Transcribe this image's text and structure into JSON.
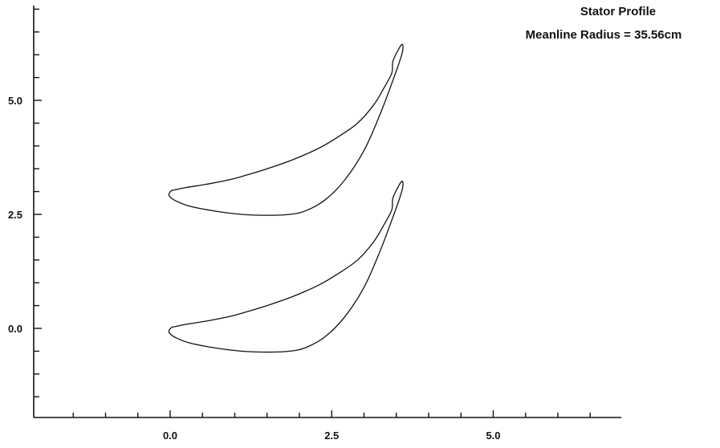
{
  "chart_data": {
    "type": "line",
    "title": "Stator Profile",
    "subtitle": "Meanline Radius = 35.56cm",
    "xlabel": "",
    "ylabel": "",
    "xlim": [
      -2.0,
      7.0
    ],
    "ylim": [
      -2.0,
      7.0
    ],
    "x_ticks": [
      0.0,
      2.5,
      5.0
    ],
    "x_tick_labels": [
      "0.0",
      "2.5",
      "5.0"
    ],
    "y_ticks": [
      0.0,
      2.5,
      5.0
    ],
    "y_tick_labels": [
      "0.0",
      "2.5",
      "5.0"
    ],
    "x_minor_step": 0.5,
    "y_minor_step": 0.5,
    "grid": false,
    "line_color": "#111111",
    "series": [
      {
        "x": [
          3.45,
          3.43,
          3.3,
          3.15,
          2.9,
          2.6,
          2.3,
          1.9,
          1.5,
          1.2,
          0.95,
          0.6,
          0.25,
          0.08,
          0.02,
          -0.02,
          0.0,
          0.08,
          0.3,
          0.7,
          1.1,
          1.5,
          1.85,
          2.1,
          2.4,
          2.7,
          3.0,
          3.25,
          3.45,
          3.55,
          3.6,
          3.58
        ],
        "y": [
          2.87,
          2.6,
          2.25,
          1.9,
          1.5,
          1.2,
          0.95,
          0.7,
          0.5,
          0.37,
          0.27,
          0.17,
          0.09,
          0.04,
          0.02,
          -0.06,
          -0.12,
          -0.2,
          -0.32,
          -0.43,
          -0.5,
          -0.52,
          -0.5,
          -0.42,
          -0.18,
          0.25,
          0.9,
          1.7,
          2.45,
          2.85,
          3.1,
          3.22
        ]
      },
      {
        "x": [
          3.45,
          3.43,
          3.3,
          3.15,
          2.9,
          2.6,
          2.3,
          1.9,
          1.5,
          1.2,
          0.95,
          0.6,
          0.25,
          0.08,
          0.02,
          -0.02,
          0.0,
          0.08,
          0.3,
          0.7,
          1.1,
          1.5,
          1.85,
          2.1,
          2.4,
          2.7,
          3.0,
          3.25,
          3.45,
          3.55,
          3.6,
          3.58
        ],
        "y": [
          5.87,
          5.6,
          5.25,
          4.9,
          4.5,
          4.2,
          3.95,
          3.7,
          3.5,
          3.37,
          3.27,
          3.17,
          3.09,
          3.04,
          3.02,
          2.94,
          2.88,
          2.8,
          2.68,
          2.57,
          2.5,
          2.48,
          2.5,
          2.58,
          2.82,
          3.25,
          3.9,
          4.7,
          5.45,
          5.85,
          6.1,
          6.22
        ]
      }
    ]
  }
}
